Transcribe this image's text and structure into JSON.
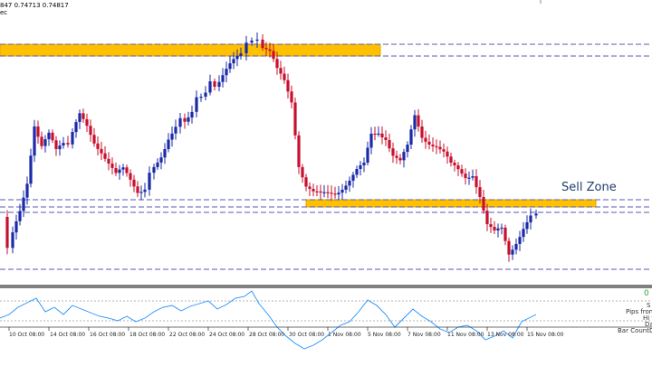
{
  "header": {
    "price_line": "847 0.74713 0.74817",
    "timeframe_fragment": "ec"
  },
  "annotations": {
    "sell_zone": "Sell Zone"
  },
  "indicator": {
    "value_label": "0",
    "side_labels": [
      "S",
      "Pips from",
      "Hi t",
      "Da",
      "Bar CountDo"
    ]
  },
  "x_axis": {
    "dates": [
      "10 Oct 08:00",
      "14 Oct 08:00",
      "16 Oct 08:00",
      "18 Oct 08:00",
      "22 Oct 08:00",
      "24 Oct 08:00",
      "28 Oct 08:00",
      "30 Oct 08:00",
      "1 Nov 08:00",
      "5 Nov 08:00",
      "7 Nov 08:00",
      "11 Nov 08:00",
      "13 Nov 08:00",
      "15 Nov 08:00"
    ]
  },
  "colors": {
    "bull_candle": "#1a2aa8",
    "bear_candle": "#c8102e",
    "zone_fill": "#ffc000",
    "dashed_level": "#5a5ab4",
    "indicator_line": "#1e90ff",
    "sell_zone_text": "#1f3f6e"
  }
}
